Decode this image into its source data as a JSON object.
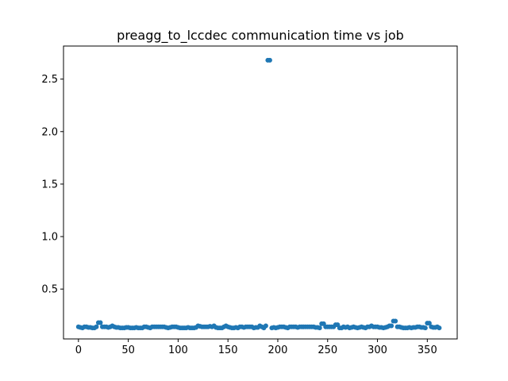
{
  "chart_data": {
    "type": "scatter",
    "title": "preagg_to_lccdec communication time vs job",
    "xlabel": "",
    "ylabel": "",
    "xlim": [
      -15,
      380
    ],
    "ylim": [
      0.025,
      2.815
    ],
    "xticks": [
      0,
      50,
      100,
      150,
      200,
      250,
      300,
      350
    ],
    "xtick_labels": [
      "0",
      "50",
      "100",
      "150",
      "200",
      "250",
      "300",
      "350"
    ],
    "yticks": [
      0.5,
      1.0,
      1.5,
      2.0,
      2.5
    ],
    "ytick_labels": [
      "0.5",
      "1.0",
      "1.5",
      "2.0",
      "2.5"
    ],
    "grid": false,
    "legend": "none",
    "marker_color": "#1f77b4",
    "series": [
      {
        "name": "",
        "x": [
          0,
          2,
          4,
          6,
          8,
          10,
          12,
          14,
          16,
          18,
          20,
          22,
          24,
          26,
          28,
          30,
          32,
          34,
          36,
          38,
          40,
          42,
          44,
          46,
          48,
          50,
          52,
          54,
          56,
          58,
          60,
          62,
          64,
          66,
          68,
          70,
          72,
          74,
          76,
          78,
          80,
          82,
          84,
          86,
          88,
          90,
          92,
          94,
          96,
          98,
          100,
          102,
          104,
          106,
          108,
          110,
          112,
          114,
          116,
          118,
          120,
          122,
          124,
          126,
          128,
          130,
          132,
          134,
          136,
          138,
          140,
          142,
          144,
          146,
          148,
          150,
          152,
          154,
          156,
          158,
          160,
          162,
          164,
          166,
          168,
          170,
          172,
          174,
          176,
          178,
          180,
          182,
          184,
          186,
          188,
          190,
          192,
          194,
          196,
          198,
          200,
          202,
          204,
          206,
          208,
          210,
          212,
          214,
          216,
          218,
          220,
          222,
          224,
          226,
          228,
          230,
          232,
          234,
          236,
          238,
          240,
          242,
          244,
          246,
          248,
          250,
          252,
          254,
          256,
          258,
          260,
          262,
          264,
          266,
          268,
          270,
          272,
          274,
          276,
          278,
          280,
          282,
          284,
          286,
          288,
          290,
          292,
          294,
          296,
          298,
          300,
          302,
          304,
          306,
          308,
          310,
          312,
          314,
          316,
          318,
          320,
          322,
          324,
          326,
          328,
          330,
          332,
          334,
          336,
          338,
          340,
          342,
          344,
          346,
          348,
          350,
          352,
          354,
          356,
          358,
          360,
          362
        ],
        "y": [
          0.14,
          0.135,
          0.13,
          0.14,
          0.14,
          0.135,
          0.135,
          0.13,
          0.13,
          0.14,
          0.18,
          0.18,
          0.14,
          0.14,
          0.14,
          0.135,
          0.14,
          0.15,
          0.14,
          0.135,
          0.135,
          0.13,
          0.13,
          0.13,
          0.135,
          0.135,
          0.13,
          0.13,
          0.13,
          0.135,
          0.13,
          0.13,
          0.13,
          0.14,
          0.14,
          0.135,
          0.13,
          0.14,
          0.14,
          0.14,
          0.14,
          0.14,
          0.14,
          0.14,
          0.135,
          0.13,
          0.135,
          0.14,
          0.14,
          0.14,
          0.135,
          0.13,
          0.13,
          0.13,
          0.13,
          0.135,
          0.13,
          0.13,
          0.13,
          0.135,
          0.15,
          0.145,
          0.14,
          0.14,
          0.14,
          0.14,
          0.145,
          0.14,
          0.15,
          0.135,
          0.13,
          0.13,
          0.13,
          0.14,
          0.15,
          0.14,
          0.135,
          0.13,
          0.13,
          0.135,
          0.13,
          0.14,
          0.14,
          0.135,
          0.14,
          0.14,
          0.14,
          0.14,
          0.13,
          0.135,
          0.135,
          0.15,
          0.14,
          0.13,
          0.15,
          2.68,
          2.68,
          0.13,
          0.135,
          0.13,
          0.135,
          0.14,
          0.14,
          0.14,
          0.135,
          0.13,
          0.14,
          0.14,
          0.14,
          0.14,
          0.135,
          0.14,
          0.14,
          0.14,
          0.14,
          0.14,
          0.14,
          0.14,
          0.14,
          0.135,
          0.135,
          0.13,
          0.17,
          0.17,
          0.14,
          0.14,
          0.14,
          0.14,
          0.14,
          0.16,
          0.16,
          0.13,
          0.13,
          0.14,
          0.135,
          0.14,
          0.13,
          0.135,
          0.14,
          0.135,
          0.13,
          0.135,
          0.14,
          0.135,
          0.13,
          0.14,
          0.14,
          0.15,
          0.14,
          0.14,
          0.14,
          0.135,
          0.135,
          0.13,
          0.135,
          0.14,
          0.15,
          0.15,
          0.195,
          0.195,
          0.14,
          0.14,
          0.135,
          0.13,
          0.13,
          0.13,
          0.135,
          0.13,
          0.135,
          0.135,
          0.14,
          0.14,
          0.135,
          0.135,
          0.13,
          0.175,
          0.175,
          0.14,
          0.135,
          0.135,
          0.14,
          0.13
        ]
      }
    ]
  }
}
